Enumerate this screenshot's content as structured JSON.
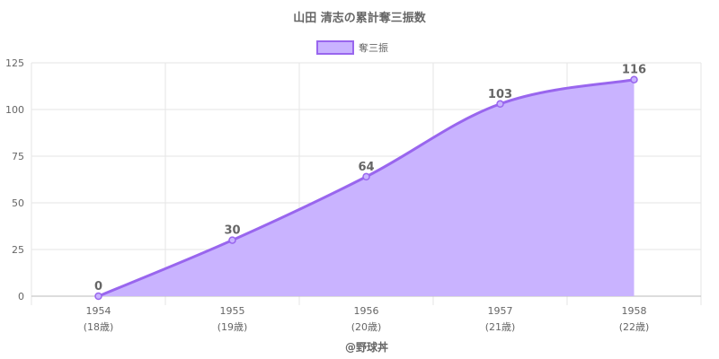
{
  "chart_data": {
    "type": "area",
    "title": "山田 清志の累計奪三振数",
    "legend": {
      "label": "奪三振",
      "position": "top"
    },
    "categories": [
      "1954",
      "1955",
      "1956",
      "1957",
      "1958"
    ],
    "category_sublabels": [
      "(18歳)",
      "(19歳)",
      "(20歳)",
      "(21歳)",
      "(22歳)"
    ],
    "series": [
      {
        "name": "奪三振",
        "values": [
          0,
          30,
          64,
          103,
          116
        ]
      }
    ],
    "data_labels": [
      "0",
      "30",
      "64",
      "103",
      "116"
    ],
    "ylim": [
      0,
      125
    ],
    "yticks": [
      0,
      25,
      50,
      75,
      100,
      125
    ],
    "grid": true,
    "colors": {
      "line": "#9966ee",
      "fill": "#c9b3ff",
      "grid": "#e6e6e6",
      "axis": "#bbbbbb"
    }
  },
  "footer": {
    "credit": "@野球丼"
  }
}
